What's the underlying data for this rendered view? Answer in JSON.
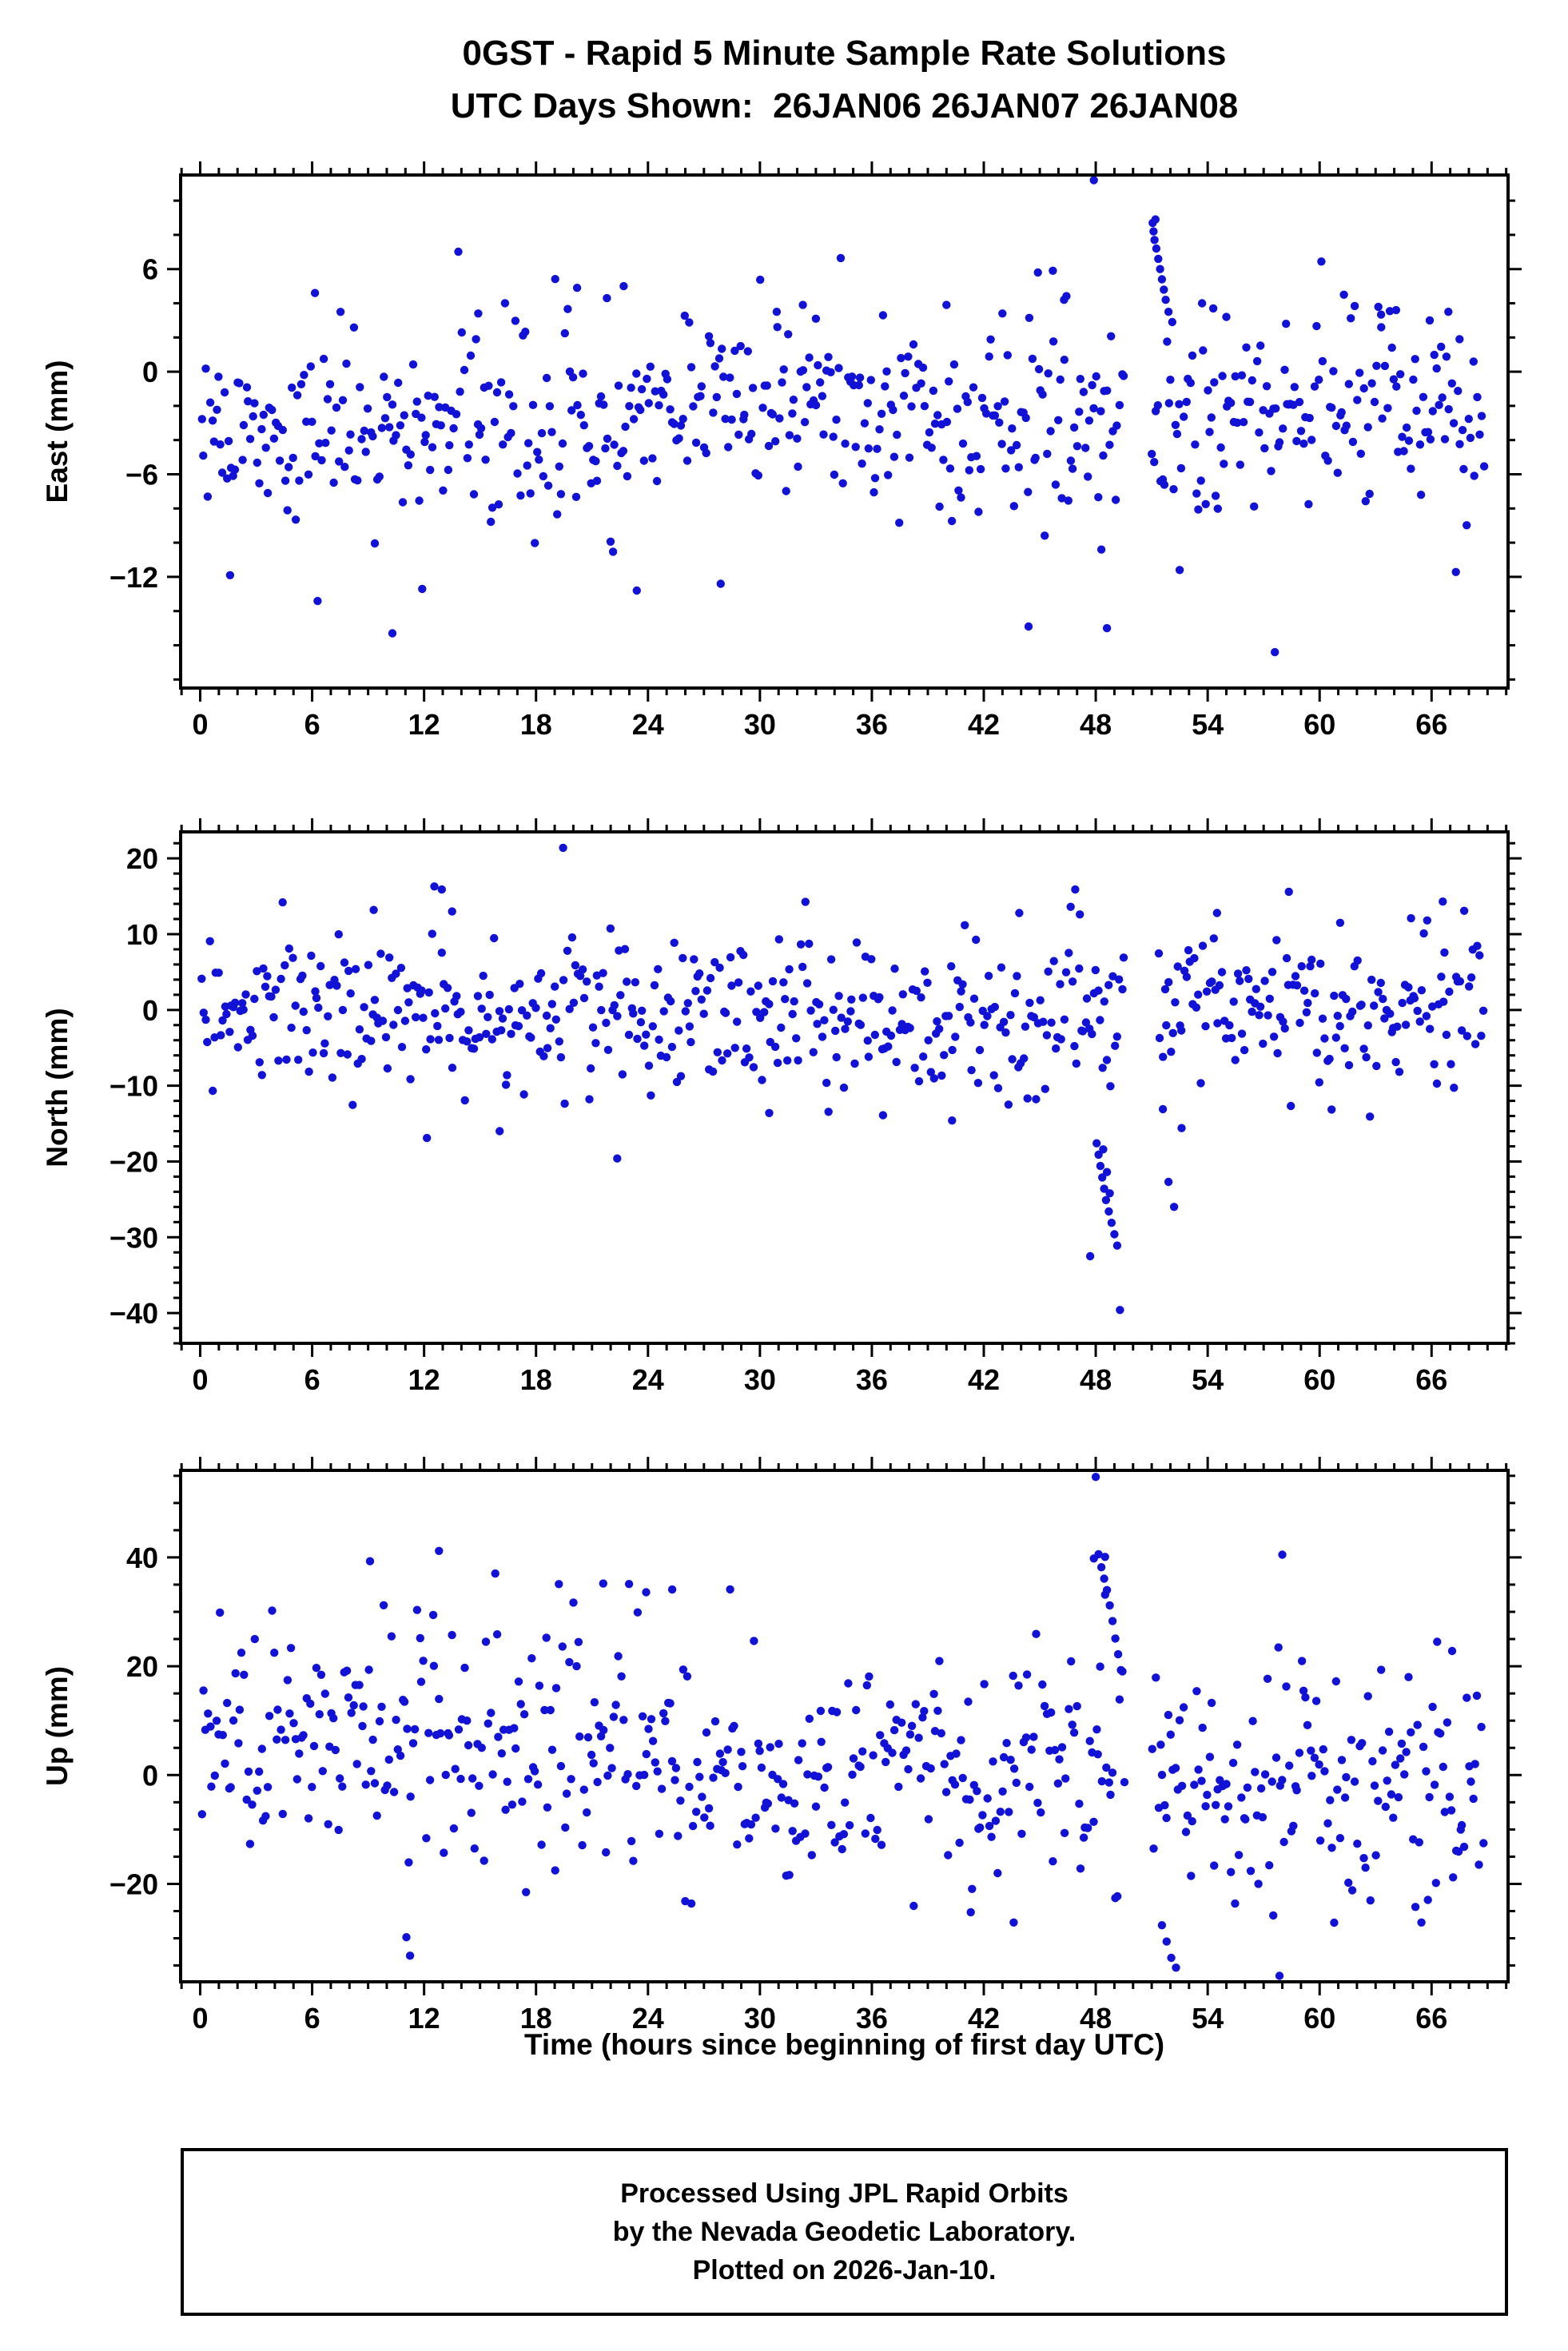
{
  "title": {
    "line1": "0GST - Rapid 5 Minute Sample Rate Solutions",
    "line2": "UTC Days Shown:  26JAN06 26JAN07 26JAN08"
  },
  "x_axis_label": "Time (hours since beginning of first day UTC)",
  "footer": {
    "line1": "Processed Using JPL Rapid Orbits",
    "line2": "by the Nevada Geodetic Laboratory.",
    "line3": "Plotted on 2026-Jan-10."
  },
  "colors": {
    "marker": "#1212D6",
    "axis": "#000000",
    "background": "#FFFFFF"
  },
  "chart_data": [
    {
      "type": "scatter",
      "name": "east",
      "ylabel": "East (mm)",
      "xlim": [
        -1.05,
        70.1
      ],
      "ylim": [
        -18.5,
        11.5
      ],
      "xticks": [
        0,
        6,
        12,
        18,
        24,
        30,
        36,
        42,
        48,
        54,
        60,
        66
      ],
      "yticks": [
        -12,
        -6,
        0,
        6
      ],
      "x_minor_step": 1,
      "y_minor_step": 2,
      "points_spec": {
        "seed": 421,
        "n": 600,
        "x_start": 0.06,
        "x_end": 68.9,
        "gaps": [
          [
            49.6,
            51.0
          ]
        ],
        "segments": [
          {
            "x0": -2,
            "x1": 24,
            "mean": -3.1
          },
          {
            "x0": 24,
            "x1": 49.6,
            "mean": -2.6
          },
          {
            "x0": 49.6,
            "x1": 70.2,
            "mean": -2.7
          }
        ],
        "std": 2.6,
        "tail_p": 0.07,
        "tail_scale": 1.9,
        "clamp": [
          -14.6,
          8.0
        ]
      },
      "extra_points": [
        [
          1.6,
          -11.9
        ],
        [
          6.15,
          4.6
        ],
        [
          10.3,
          -15.3
        ],
        [
          11.9,
          -12.7
        ],
        [
          14.9,
          3.4
        ],
        [
          20.2,
          4.9
        ],
        [
          21.8,
          4.3
        ],
        [
          22.7,
          5.0
        ],
        [
          23.4,
          -12.8
        ],
        [
          27.9,
          -12.4
        ],
        [
          30.9,
          3.5
        ],
        [
          32.3,
          3.9
        ],
        [
          33.0,
          3.1
        ],
        [
          36.6,
          3.3
        ],
        [
          40.0,
          3.9
        ],
        [
          43.0,
          3.4
        ],
        [
          44.4,
          -14.9
        ],
        [
          44.9,
          5.8
        ],
        [
          45.7,
          5.9
        ],
        [
          46.3,
          4.2
        ],
        [
          47.9,
          11.2
        ],
        [
          48.3,
          -10.4
        ],
        [
          48.6,
          -15.0
        ],
        [
          51.05,
          8.7
        ],
        [
          51.1,
          8.2
        ],
        [
          51.15,
          7.7
        ],
        [
          51.2,
          8.9
        ],
        [
          51.25,
          7.2
        ],
        [
          51.35,
          6.6
        ],
        [
          51.45,
          6.0
        ],
        [
          51.55,
          5.4
        ],
        [
          51.65,
          4.8
        ],
        [
          51.75,
          4.2
        ],
        [
          51.9,
          3.5
        ],
        [
          52.1,
          2.9
        ],
        [
          52.5,
          -11.6
        ],
        [
          53.7,
          4.0
        ],
        [
          54.3,
          3.7
        ],
        [
          55.0,
          3.2
        ],
        [
          57.6,
          -16.4
        ],
        [
          58.2,
          2.8
        ],
        [
          61.3,
          4.5
        ],
        [
          63.3,
          2.6
        ],
        [
          64.1,
          3.6
        ],
        [
          65.9,
          3.0
        ],
        [
          66.9,
          3.5
        ],
        [
          67.5,
          1.9
        ]
      ]
    },
    {
      "type": "scatter",
      "name": "north",
      "ylabel": "North (mm)",
      "xlim": [
        -1.05,
        70.1
      ],
      "ylim": [
        -44,
        23.5
      ],
      "xticks": [
        0,
        6,
        12,
        18,
        24,
        30,
        36,
        42,
        48,
        54,
        60,
        66
      ],
      "yticks": [
        -40,
        -30,
        -20,
        -10,
        0,
        10,
        20
      ],
      "x_minor_step": 1,
      "y_minor_step": 2,
      "points_spec": {
        "seed": 777,
        "n": 600,
        "x_start": 0.06,
        "x_end": 68.9,
        "gaps": [
          [
            49.6,
            51.3
          ]
        ],
        "segments": [
          {
            "x0": -2,
            "x1": 70.2,
            "mean": -0.3
          }
        ],
        "std": 4.8,
        "tail_p": 0.05,
        "tail_scale": 1.6,
        "clamp": [
          -33.0,
          22.5
        ]
      },
      "extra_points": [
        [
          9.3,
          13.2
        ],
        [
          12.15,
          -16.9
        ],
        [
          12.55,
          16.3
        ],
        [
          12.95,
          15.9
        ],
        [
          13.5,
          13.0
        ],
        [
          16.05,
          -16.0
        ],
        [
          19.45,
          21.4
        ],
        [
          22.35,
          -19.6
        ],
        [
          30.5,
          -13.6
        ],
        [
          36.6,
          -13.9
        ],
        [
          40.3,
          -14.6
        ],
        [
          43.9,
          12.8
        ],
        [
          46.9,
          15.9
        ],
        [
          47.15,
          12.6
        ],
        [
          47.7,
          -32.5
        ],
        [
          48.05,
          -17.6
        ],
        [
          48.15,
          -19.1
        ],
        [
          48.25,
          -20.6
        ],
        [
          48.35,
          -22.1
        ],
        [
          48.4,
          -18.4
        ],
        [
          48.45,
          -23.6
        ],
        [
          48.55,
          -25.1
        ],
        [
          48.6,
          -21.4
        ],
        [
          48.7,
          -26.6
        ],
        [
          48.75,
          -24.2
        ],
        [
          48.85,
          -28.1
        ],
        [
          49.0,
          -29.6
        ],
        [
          49.15,
          -31.1
        ],
        [
          49.3,
          -39.6
        ],
        [
          51.6,
          -13.1
        ],
        [
          51.9,
          -22.7
        ],
        [
          52.2,
          -26.0
        ],
        [
          52.6,
          -15.6
        ],
        [
          54.5,
          12.8
        ],
        [
          58.35,
          15.6
        ],
        [
          61.1,
          11.5
        ],
        [
          64.9,
          12.1
        ],
        [
          66.6,
          14.3
        ]
      ]
    },
    {
      "type": "scatter",
      "name": "up",
      "ylabel": "Up (mm)",
      "xlim": [
        -1.05,
        70.1
      ],
      "ylim": [
        -38,
        56
      ],
      "xticks": [
        0,
        6,
        12,
        18,
        24,
        30,
        36,
        42,
        48,
        54,
        60,
        66
      ],
      "yticks": [
        -20,
        0,
        20,
        40
      ],
      "x_minor_step": 1,
      "y_minor_step": 5,
      "points_spec": {
        "seed": 1303,
        "n": 600,
        "x_start": 0.06,
        "x_end": 68.9,
        "gaps": [
          [
            49.6,
            51.0
          ]
        ],
        "segments": [
          {
            "x0": -2,
            "x1": 24,
            "mean": 6.5
          },
          {
            "x0": 24,
            "x1": 49.6,
            "mean": 0.5
          },
          {
            "x0": 49.6,
            "x1": 70.2,
            "mean": -2.5
          }
        ],
        "std": 10.5,
        "tail_p": 0.05,
        "tail_scale": 1.4,
        "clamp": [
          -33.0,
          44.0
        ]
      },
      "extra_points": [
        [
          9.1,
          39.3
        ],
        [
          11.05,
          -29.8
        ],
        [
          11.25,
          -33.2
        ],
        [
          12.8,
          41.2
        ],
        [
          21.6,
          35.2
        ],
        [
          23.9,
          33.6
        ],
        [
          25.3,
          34.1
        ],
        [
          41.3,
          -25.2
        ],
        [
          43.6,
          -27.1
        ],
        [
          47.9,
          39.8
        ],
        [
          48.0,
          54.8
        ],
        [
          48.15,
          40.6
        ],
        [
          48.3,
          38.2
        ],
        [
          48.45,
          36.1
        ],
        [
          48.5,
          40.1
        ],
        [
          48.6,
          34.0
        ],
        [
          48.75,
          31.2
        ],
        [
          48.9,
          28.3
        ],
        [
          49.05,
          25.1
        ],
        [
          49.2,
          22.2
        ],
        [
          49.35,
          19.3
        ],
        [
          51.55,
          -27.6
        ],
        [
          51.8,
          -30.6
        ],
        [
          52.05,
          -33.6
        ],
        [
          52.3,
          -35.4
        ],
        [
          57.85,
          -36.9
        ],
        [
          58.0,
          40.5
        ],
        [
          66.3,
          24.5
        ],
        [
          67.1,
          22.8
        ]
      ]
    }
  ]
}
